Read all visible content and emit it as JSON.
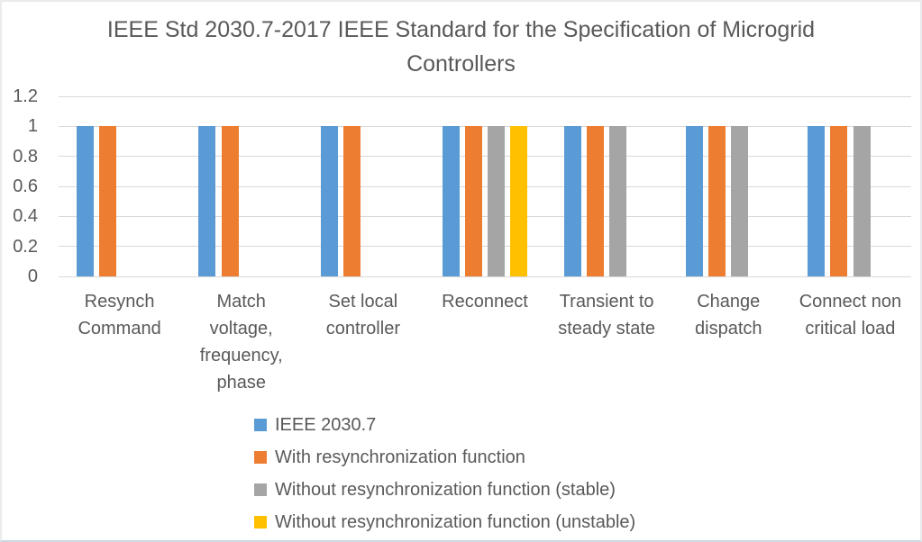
{
  "title_text": "IEEE Std 2030.7-2017 IEEE Standard for the Specification of Microgrid\nControllers",
  "text_color": "#595959",
  "gridline_color": "#d9d9d9",
  "chart_data": {
    "type": "bar",
    "title": "IEEE Std 2030.7-2017 IEEE Standard for the Specification of Microgrid Controllers",
    "categories": [
      "Resynch Command",
      "Match voltage, frequency, phase",
      "Set local controller",
      "Reconnect",
      "Transient to steady state",
      "Change dispatch",
      "Connect non critical load"
    ],
    "categories_wrapped": [
      "Resynch\nCommand",
      "Match\nvoltage,\nfrequency,\nphase",
      "Set local\ncontroller",
      "Reconnect",
      "Transient to\nsteady state",
      "Change\ndispatch",
      "Connect non\ncritical load"
    ],
    "series": [
      {
        "name": "IEEE 2030.7",
        "color": "#5B9BD5",
        "values": [
          1,
          1,
          1,
          1,
          1,
          1,
          1
        ]
      },
      {
        "name": "With resynchronization function",
        "color": "#ED7D31",
        "values": [
          1,
          1,
          1,
          1,
          1,
          1,
          1
        ]
      },
      {
        "name": "Without resynchronization function (stable)",
        "color": "#A5A5A5",
        "values": [
          null,
          null,
          null,
          1,
          1,
          1,
          1
        ]
      },
      {
        "name": "Without resynchronization function (unstable)",
        "color": "#FFC000",
        "values": [
          null,
          null,
          null,
          1,
          null,
          null,
          null
        ]
      }
    ],
    "xlabel": "",
    "ylabel": "",
    "ylim": [
      0,
      1.2
    ],
    "yticks": [
      0,
      0.2,
      0.4,
      0.6,
      0.8,
      1,
      1.2
    ],
    "ytick_labels": [
      "0",
      "0.2",
      "0.4",
      "0.6",
      "0.8",
      "1",
      "1.2"
    ],
    "grid": true,
    "legend_position": "bottom"
  }
}
